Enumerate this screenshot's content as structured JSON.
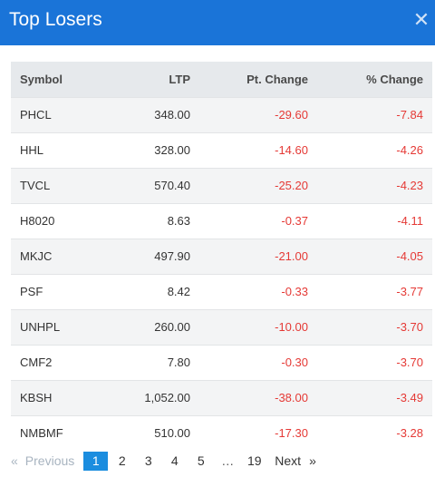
{
  "header": {
    "title": "Top Losers",
    "close_glyph": "✕"
  },
  "table": {
    "columns": [
      "Symbol",
      "LTP",
      "Pt. Change",
      "% Change"
    ],
    "rows": [
      {
        "symbol": "PHCL",
        "ltp": "348.00",
        "pt_change": "-29.60",
        "pct_change": "-7.84"
      },
      {
        "symbol": "HHL",
        "ltp": "328.00",
        "pt_change": "-14.60",
        "pct_change": "-4.26"
      },
      {
        "symbol": "TVCL",
        "ltp": "570.40",
        "pt_change": "-25.20",
        "pct_change": "-4.23"
      },
      {
        "symbol": "H8020",
        "ltp": "8.63",
        "pt_change": "-0.37",
        "pct_change": "-4.11"
      },
      {
        "symbol": "MKJC",
        "ltp": "497.90",
        "pt_change": "-21.00",
        "pct_change": "-4.05"
      },
      {
        "symbol": "PSF",
        "ltp": "8.42",
        "pt_change": "-0.33",
        "pct_change": "-3.77"
      },
      {
        "symbol": "UNHPL",
        "ltp": "260.00",
        "pt_change": "-10.00",
        "pct_change": "-3.70"
      },
      {
        "symbol": "CMF2",
        "ltp": "7.80",
        "pt_change": "-0.30",
        "pct_change": "-3.70"
      },
      {
        "symbol": "KBSH",
        "ltp": "1,052.00",
        "pt_change": "-38.00",
        "pct_change": "-3.49"
      },
      {
        "symbol": "NMBMF",
        "ltp": "510.00",
        "pt_change": "-17.30",
        "pct_change": "-3.28"
      }
    ]
  },
  "pagination": {
    "laquo": "«",
    "previous": "Previous",
    "pages": [
      "1",
      "2",
      "3",
      "4",
      "5"
    ],
    "active_page": "1",
    "ellipsis": "…",
    "last_page": "19",
    "next": "Next",
    "raquo": "»"
  },
  "colors": {
    "header_bg": "#1a74d8",
    "negative": "#e53935",
    "active_page_bg": "#1b8ddf"
  }
}
